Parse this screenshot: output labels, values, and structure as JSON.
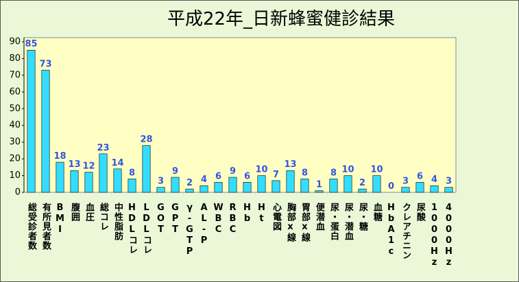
{
  "chart_data": {
    "type": "bar",
    "title": "平成22年_日新蜂蜜健診結果",
    "categories": [
      "総受診者数",
      "有所見者数",
      "BMI",
      "腹囲",
      "血圧",
      "総コレ",
      "中性脂肪",
      "HDLコレ",
      "LDLコレ",
      "GOT",
      "GPT",
      "γ-GTP",
      "AL-P",
      "WBC",
      "RBC",
      "Hb",
      "Ht",
      "心電図",
      "胸部x線",
      "胃部x線",
      "便潜血",
      "尿・蛋白",
      "尿・潜血",
      "尿・糖",
      "血糖",
      "HbA1c",
      "クレアチニン",
      "尿酸",
      "1000Hz",
      "4000Hz"
    ],
    "values": [
      85,
      73,
      18,
      13,
      12,
      23,
      14,
      8,
      28,
      3,
      9,
      2,
      4,
      6,
      9,
      6,
      10,
      7,
      13,
      8,
      1,
      8,
      10,
      2,
      10,
      0,
      3,
      6,
      4,
      3
    ],
    "color": "#33ddff",
    "ylim": [
      0,
      90
    ],
    "yticks": [
      0,
      10,
      20,
      30,
      40,
      50,
      60,
      70,
      80,
      90
    ]
  }
}
